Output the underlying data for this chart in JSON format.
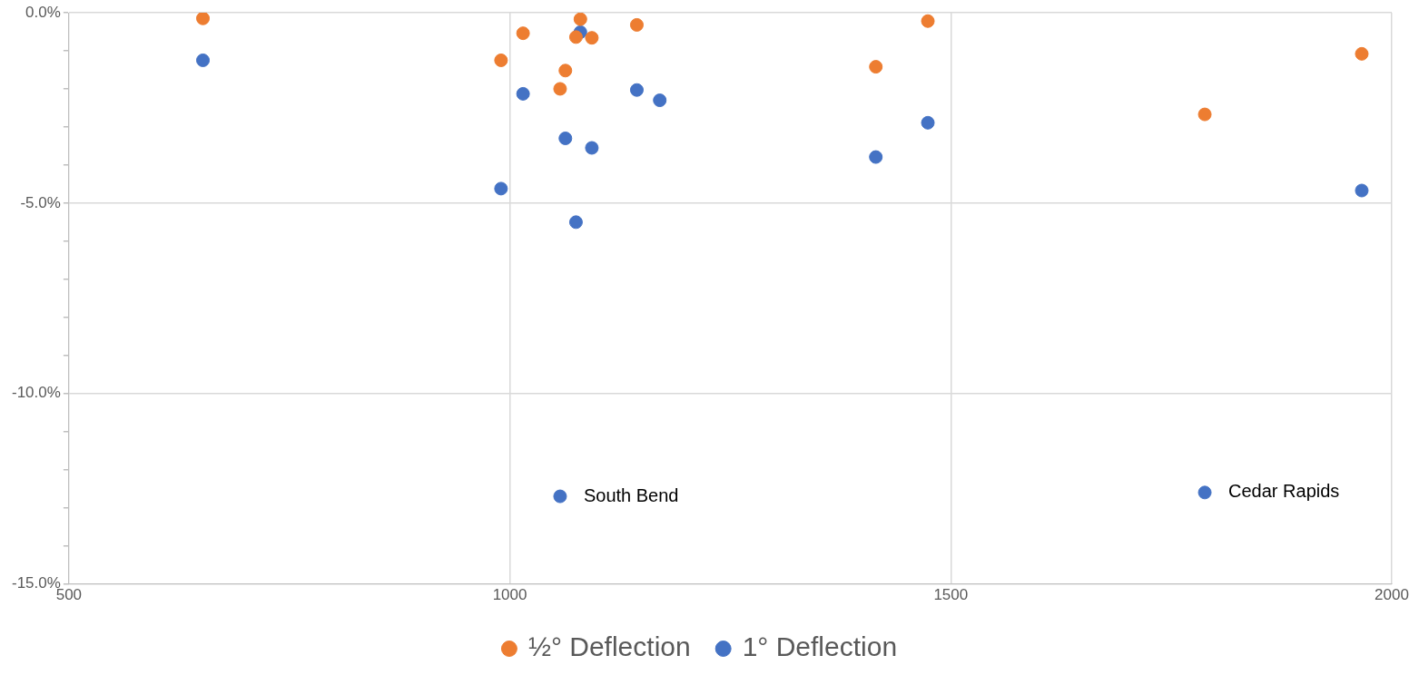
{
  "chart_data": {
    "type": "scatter",
    "xlim": [
      500,
      2000
    ],
    "xticks": [
      500,
      1000,
      1500,
      2000
    ],
    "ylim": [
      -15,
      0
    ],
    "yticks": [
      {
        "value": -15,
        "label": "-15.0%"
      },
      {
        "value": -14,
        "label": null
      },
      {
        "value": -13,
        "label": null
      },
      {
        "value": -12,
        "label": null
      },
      {
        "value": -11,
        "label": null
      },
      {
        "value": -10,
        "label": "-10.0%"
      },
      {
        "value": -9,
        "label": null
      },
      {
        "value": -8,
        "label": null
      },
      {
        "value": -7,
        "label": null
      },
      {
        "value": -6,
        "label": null
      },
      {
        "value": -5,
        "label": "-5.0%"
      },
      {
        "value": -4,
        "label": null
      },
      {
        "value": -3,
        "label": null
      },
      {
        "value": -2,
        "label": null
      },
      {
        "value": -1,
        "label": null
      },
      {
        "value": 0,
        "label": "0.0%"
      }
    ],
    "grid": true,
    "legend": "bottom",
    "marker": "circle",
    "series": [
      {
        "name": "½° Deflection",
        "color": "#ed7d31",
        "x": [
          652,
          990,
          1015,
          1057,
          1063,
          1075,
          1080,
          1093,
          1144,
          1415,
          1474,
          1788,
          1966
        ],
        "values": [
          -0.15,
          -1.25,
          -0.54,
          -2.0,
          -1.52,
          -0.64,
          -0.17,
          -0.66,
          -0.32,
          -1.42,
          -0.22,
          -2.67,
          -1.08
        ]
      },
      {
        "name": "1° Deflection",
        "color": "#4472c4",
        "x": [
          652,
          990,
          1015,
          1063,
          1075,
          1080,
          1093,
          1144,
          1170,
          1415,
          1474,
          1966
        ],
        "values": [
          -1.25,
          -4.62,
          -2.13,
          -3.3,
          -5.5,
          -0.51,
          -3.55,
          -2.03,
          -2.3,
          -3.79,
          -2.89,
          -4.67
        ]
      },
      {
        "color": "#4472c4",
        "x": [
          1057,
          1788
        ],
        "values": [
          -12.7,
          -12.6
        ]
      }
    ],
    "annotations": [
      {
        "text": "South Bend",
        "x": 1057,
        "y": -12.7
      },
      {
        "text": "Cedar Rapids",
        "x": 1788,
        "y": -12.6
      }
    ]
  }
}
